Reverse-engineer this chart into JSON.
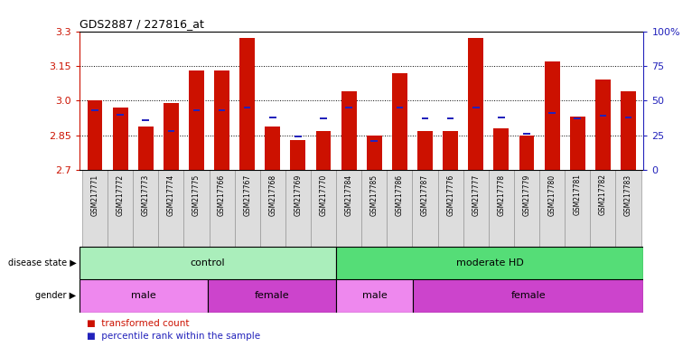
{
  "title": "GDS2887 / 227816_at",
  "samples": [
    "GSM217771",
    "GSM217772",
    "GSM217773",
    "GSM217774",
    "GSM217775",
    "GSM217766",
    "GSM217767",
    "GSM217768",
    "GSM217769",
    "GSM217770",
    "GSM217784",
    "GSM217785",
    "GSM217786",
    "GSM217787",
    "GSM217776",
    "GSM217777",
    "GSM217778",
    "GSM217779",
    "GSM217780",
    "GSM217781",
    "GSM217782",
    "GSM217783"
  ],
  "red_values": [
    3.0,
    2.97,
    2.89,
    2.99,
    3.13,
    3.13,
    3.27,
    2.89,
    2.83,
    2.87,
    3.04,
    2.85,
    3.12,
    2.87,
    2.87,
    3.27,
    2.88,
    2.85,
    3.17,
    2.93,
    3.09,
    3.04
  ],
  "blue_pct": [
    43,
    40,
    36,
    28,
    43,
    43,
    45,
    38,
    24,
    37,
    45,
    21,
    45,
    37,
    37,
    45,
    38,
    26,
    41,
    37,
    39,
    38
  ],
  "y_min": 2.7,
  "y_max": 3.3,
  "y_ticks": [
    2.7,
    2.85,
    3.0,
    3.15,
    3.3
  ],
  "right_ticks_pct": [
    0,
    25,
    50,
    75,
    100
  ],
  "right_tick_labels": [
    "0",
    "25",
    "50",
    "75",
    "100%"
  ],
  "bar_color": "#CC1100",
  "blue_color": "#2222BB",
  "disease_groups": [
    {
      "label": "control",
      "start": 0,
      "end": 10,
      "color": "#AAEEBB"
    },
    {
      "label": "moderate HD",
      "start": 10,
      "end": 22,
      "color": "#55DD77"
    }
  ],
  "gender_groups": [
    {
      "label": "male",
      "start": 0,
      "end": 5,
      "color": "#EE88EE"
    },
    {
      "label": "female",
      "start": 5,
      "end": 10,
      "color": "#CC44CC"
    },
    {
      "label": "male",
      "start": 10,
      "end": 13,
      "color": "#EE88EE"
    },
    {
      "label": "female",
      "start": 13,
      "end": 22,
      "color": "#CC44CC"
    }
  ],
  "legend_items": [
    {
      "label": "transformed count",
      "color": "#CC1100"
    },
    {
      "label": "percentile rank within the sample",
      "color": "#2222BB"
    }
  ]
}
